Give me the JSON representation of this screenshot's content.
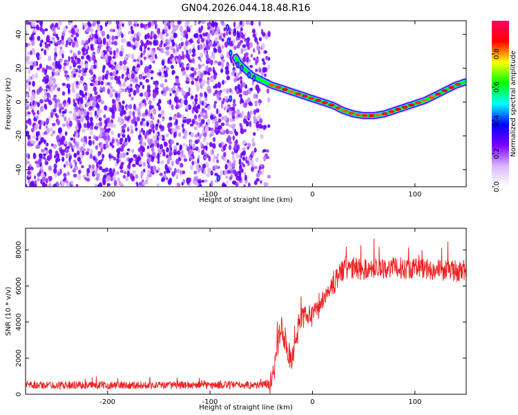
{
  "title": "GN04.2026.044.18.48.R16",
  "chart_data": [
    {
      "type": "heatmap",
      "name": "spectrogram",
      "xlabel": "Height of straight line (km)",
      "ylabel": "Frequency (Hz)",
      "xlim": [
        -280,
        150
      ],
      "ylim": [
        -50,
        48
      ],
      "xticks": [
        -200,
        -100,
        0,
        100
      ],
      "yticks": [
        -40,
        -20,
        0,
        20,
        40
      ],
      "noise_region_x": [
        -280,
        -42
      ],
      "track": {
        "x": [
          -90,
          -80,
          -72,
          -60,
          -50,
          -40,
          -30,
          -20,
          -10,
          0,
          10,
          20,
          30,
          40,
          50,
          60,
          70,
          80,
          90,
          100,
          110,
          120,
          130,
          140,
          150
        ],
        "y": [
          43,
          32,
          23,
          16,
          13,
          10,
          8,
          6,
          4,
          2,
          0,
          -2,
          -5,
          -7,
          -8,
          -8,
          -7,
          -5,
          -3,
          -1,
          1,
          4,
          7,
          10,
          12
        ]
      },
      "colorbar": {
        "label": "Normalized spectral amplitude",
        "range": [
          0,
          1
        ],
        "ticks": [
          "0.0",
          "0.2",
          "0.4",
          "0.6",
          "0.8"
        ],
        "tick_values": [
          0.0,
          0.2,
          0.4,
          0.6,
          0.8
        ],
        "colors": [
          "#ffffff",
          "#d9b8ff",
          "#7a00ff",
          "#0000ff",
          "#00ffff",
          "#00ff00",
          "#ffff00",
          "#ff0000",
          "#ff0066"
        ]
      }
    },
    {
      "type": "line",
      "name": "snr",
      "xlabel": "Height of straight line (km)",
      "ylabel": "SNR (10 * v/v)",
      "xlim": [
        -280,
        150
      ],
      "ylim": [
        0,
        9200
      ],
      "xticks": [
        -200,
        -100,
        0,
        100
      ],
      "yticks": [
        0,
        2000,
        4000,
        6000,
        8000
      ],
      "color": "#ee2222",
      "series": [
        {
          "name": "SNR envelope",
          "x": [
            -280,
            -200,
            -100,
            -50,
            -40,
            -35,
            -30,
            -25,
            -20,
            -15,
            -10,
            -5,
            0,
            5,
            10,
            15,
            20,
            25,
            30,
            40,
            50,
            60,
            80,
            100,
            120,
            150
          ],
          "y": [
            500,
            500,
            500,
            520,
            600,
            2500,
            3800,
            2500,
            1800,
            3600,
            4200,
            4400,
            4600,
            4800,
            5200,
            5600,
            6000,
            6600,
            6900,
            7000,
            6900,
            7000,
            7000,
            7000,
            6900,
            6800
          ],
          "spread": [
            420,
            420,
            420,
            420,
            600,
            1300,
            1400,
            1400,
            1500,
            1400,
            1200,
            1100,
            1000,
            1000,
            1000,
            1000,
            1100,
            1400,
            1500,
            1300,
            1200,
            1200,
            1200,
            1200,
            1200,
            1200
          ]
        }
      ]
    }
  ]
}
